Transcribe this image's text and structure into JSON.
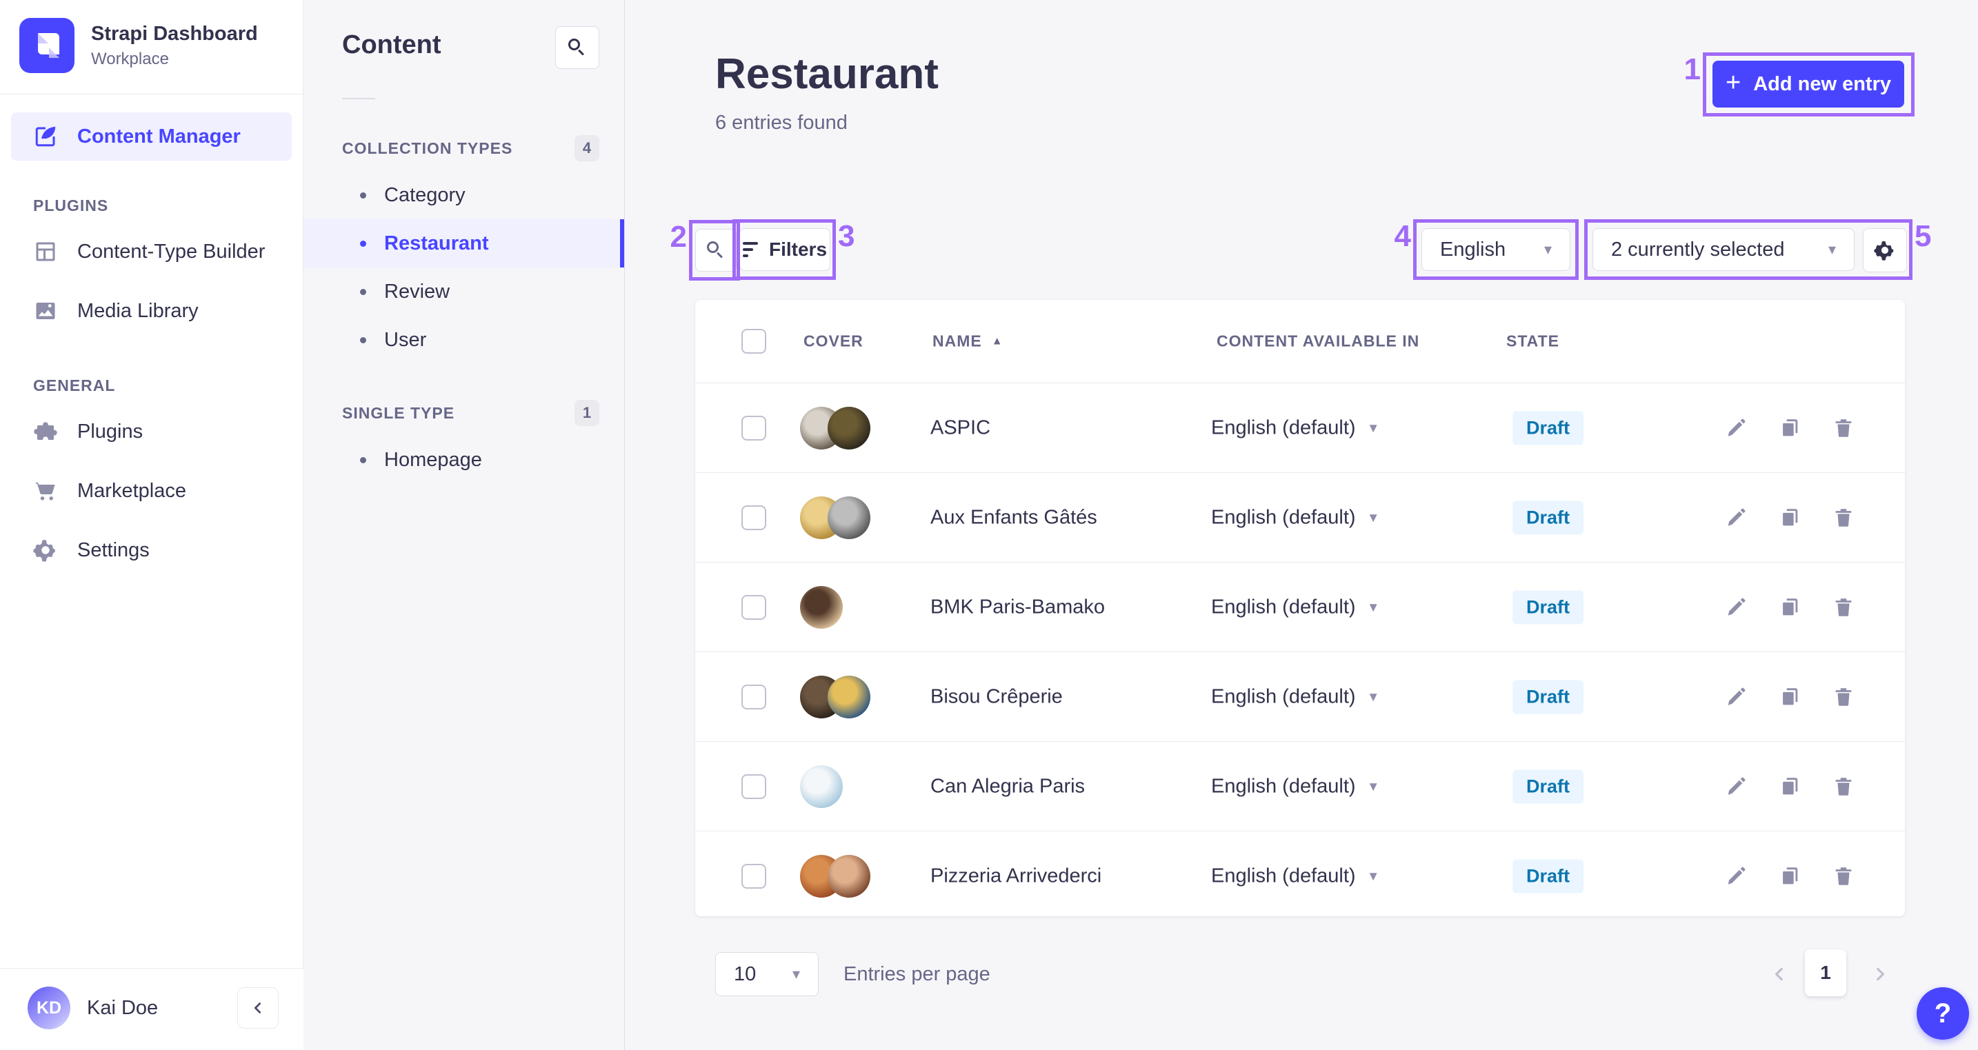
{
  "colors": {
    "primary": "#4945ff",
    "annotation": "#a06af7",
    "draft_bg": "#eaf5ff",
    "draft_text": "#0c75af",
    "sidebar_bg": "#ffffff",
    "app_bg": "#f6f6f9",
    "border": "#eaeaef"
  },
  "sidebar": {
    "brand": {
      "title": "Strapi Dashboard",
      "subtitle": "Workplace"
    },
    "workspace": {
      "label": "Content Manager"
    },
    "sections": [
      {
        "label": "PLUGINS",
        "items": [
          {
            "label": "Content-Type Builder",
            "icon": "layout-icon"
          },
          {
            "label": "Media Library",
            "icon": "media-icon"
          }
        ]
      },
      {
        "label": "GENERAL",
        "items": [
          {
            "label": "Plugins",
            "icon": "puzzle-icon"
          },
          {
            "label": "Marketplace",
            "icon": "cart-icon"
          },
          {
            "label": "Settings",
            "icon": "gear-icon"
          }
        ]
      }
    ],
    "user": {
      "initials": "KD",
      "name": "Kai Doe"
    }
  },
  "subnav": {
    "title": "Content",
    "groups": [
      {
        "label": "COLLECTION TYPES",
        "count": "4",
        "items": [
          {
            "label": "Category"
          },
          {
            "label": "Restaurant",
            "active": true
          },
          {
            "label": "Review"
          },
          {
            "label": "User"
          }
        ]
      },
      {
        "label": "SINGLE TYPE",
        "count": "1",
        "items": [
          {
            "label": "Homepage"
          }
        ]
      }
    ]
  },
  "main": {
    "title": "Restaurant",
    "subtitle": "6 entries found",
    "add_button_label": "Add new entry",
    "toolbar": {
      "filters_label": "Filters",
      "locale_value": "English",
      "selected_value": "2 currently selected"
    },
    "table": {
      "columns": [
        "COVER",
        "NAME",
        "CONTENT AVAILABLE IN",
        "STATE"
      ],
      "sort": {
        "column": "NAME",
        "direction": "asc"
      },
      "rows": [
        {
          "name": "ASPIC",
          "locale": "English (default)",
          "state": "Draft",
          "cover": [
            {
              "inner": "#d8d2c8",
              "outer": "#57493c"
            },
            {
              "inner": "#6b5b33",
              "outer": "#25201a"
            }
          ]
        },
        {
          "name": "Aux Enfants Gâtés",
          "locale": "English (default)",
          "state": "Draft",
          "cover": [
            {
              "inner": "#ecd089",
              "outer": "#a97f2c"
            },
            {
              "inner": "#bdbdbd",
              "outer": "#4a4a4a"
            }
          ]
        },
        {
          "name": "BMK Paris-Bamako",
          "locale": "English (default)",
          "state": "Draft",
          "cover": [
            {
              "inner": "#53392a",
              "outer": "#eccfa5"
            }
          ]
        },
        {
          "name": "Bisou Crêperie",
          "locale": "English (default)",
          "state": "Draft",
          "cover": [
            {
              "inner": "#6b5440",
              "outer": "#241c15"
            },
            {
              "inner": "#e5bf5c",
              "outer": "#1c4c86"
            }
          ]
        },
        {
          "name": "Can Alegria Paris",
          "locale": "English (default)",
          "state": "Draft",
          "cover": [
            {
              "inner": "#f4f7f9",
              "outer": "#9fc3db"
            }
          ]
        },
        {
          "name": "Pizzeria Arrivederci",
          "locale": "English (default)",
          "state": "Draft",
          "cover": [
            {
              "inner": "#d98d4e",
              "outer": "#93401f"
            },
            {
              "inner": "#e0b08c",
              "outer": "#6e3a22"
            }
          ]
        }
      ]
    },
    "footer": {
      "page_size": "10",
      "entries_label": "Entries per page",
      "page": "1"
    }
  },
  "help": {
    "label": "?"
  },
  "annotations": {
    "items": [
      {
        "label": "1"
      },
      {
        "label": "2"
      },
      {
        "label": "3"
      },
      {
        "label": "4"
      },
      {
        "label": "5"
      }
    ]
  }
}
